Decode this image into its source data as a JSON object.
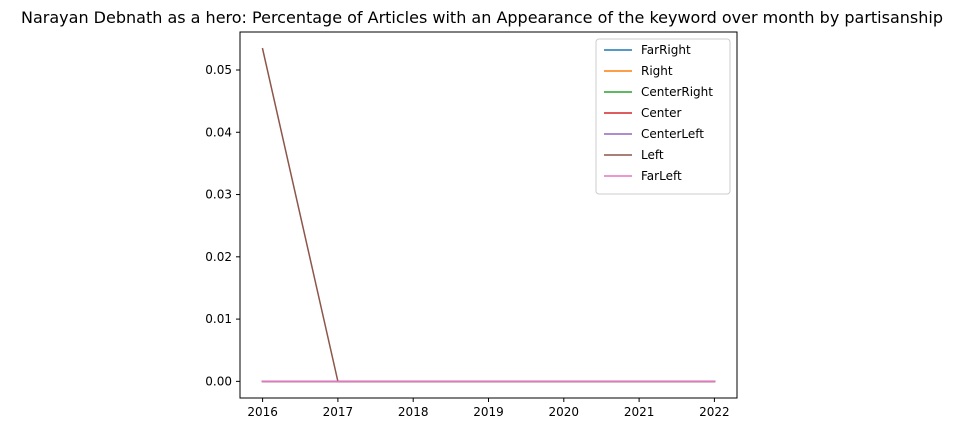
{
  "chart_data": {
    "type": "line",
    "title": "Narayan Debnath as a hero: Percentage of Articles with an Appearance of the keyword over month by partisanship",
    "xlabel": "",
    "ylabel": "",
    "x": [
      2016,
      2017,
      2018,
      2019,
      2020,
      2021,
      2022
    ],
    "xlim": [
      2015.7,
      2022.3
    ],
    "ylim": [
      -0.00267,
      0.0561
    ],
    "x_ticks": [
      2016,
      2017,
      2018,
      2019,
      2020,
      2021,
      2022
    ],
    "y_ticks": [
      0.0,
      0.01,
      0.02,
      0.03,
      0.04,
      0.05
    ],
    "y_tick_labels": [
      "0.00",
      "0.01",
      "0.02",
      "0.03",
      "0.04",
      "0.05"
    ],
    "grid": false,
    "legend_position": "top-right",
    "series": [
      {
        "name": "FarRight",
        "color": "#1f77b4",
        "values": [
          0,
          0,
          0,
          0,
          0,
          0,
          0
        ]
      },
      {
        "name": "Right",
        "color": "#ff7f0e",
        "values": [
          0,
          0,
          0,
          0,
          0,
          0,
          0
        ]
      },
      {
        "name": "CenterRight",
        "color": "#2ca02c",
        "values": [
          0,
          0,
          0,
          0,
          0,
          0,
          0
        ]
      },
      {
        "name": "Center",
        "color": "#d62728",
        "values": [
          0,
          0,
          0,
          0,
          0,
          0,
          0
        ]
      },
      {
        "name": "CenterLeft",
        "color": "#9467bd",
        "values": [
          0,
          0,
          0,
          0,
          0,
          0,
          0
        ]
      },
      {
        "name": "Left",
        "color": "#8c564b",
        "values": [
          0.0534,
          0,
          0,
          0,
          0,
          0,
          0
        ]
      },
      {
        "name": "FarLeft",
        "color": "#e377c2",
        "values": [
          0,
          0,
          0,
          0,
          0,
          0,
          0
        ]
      }
    ]
  }
}
